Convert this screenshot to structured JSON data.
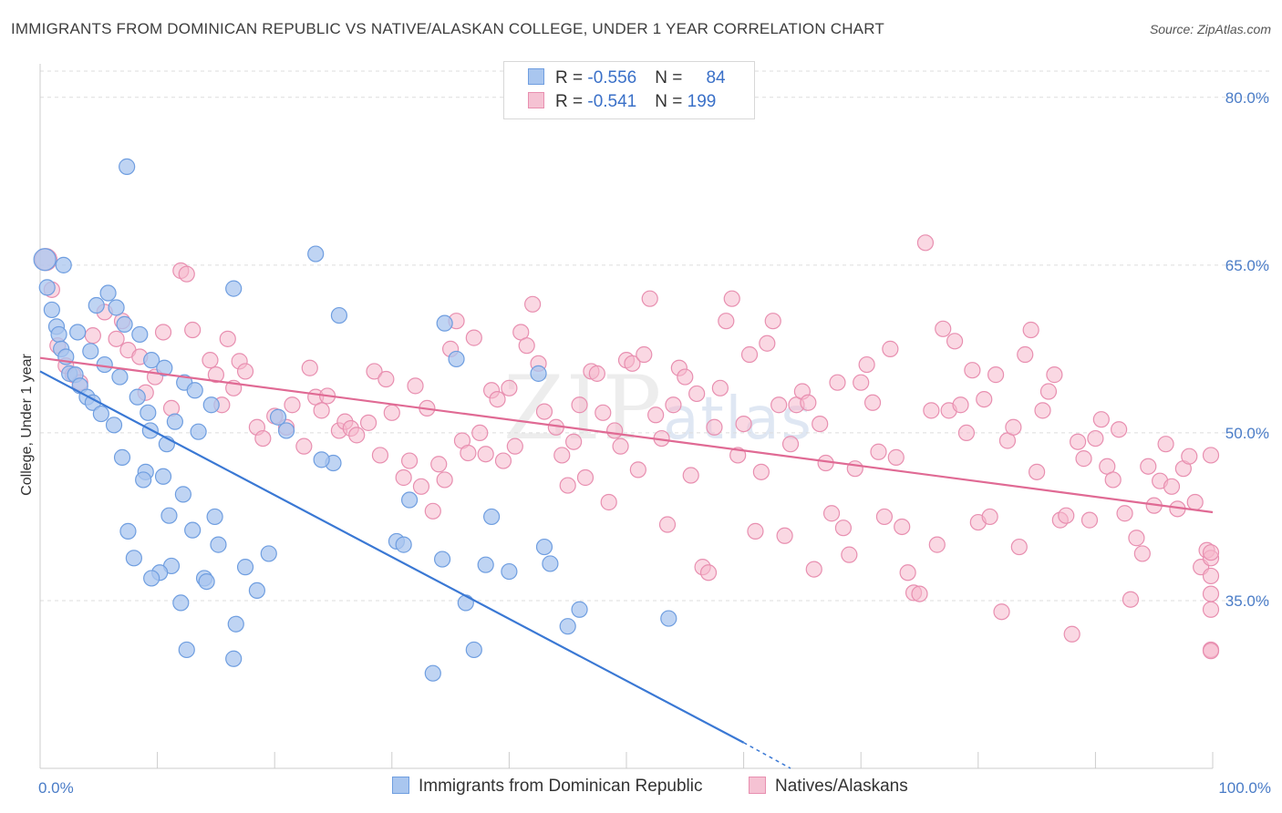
{
  "title": "IMMIGRANTS FROM DOMINICAN REPUBLIC VS NATIVE/ALASKAN COLLEGE, UNDER 1 YEAR CORRELATION CHART",
  "source": "Source: ZipAtlas.com",
  "watermark": {
    "zip": "ZIP",
    "atlas": "atlas"
  },
  "legend": {
    "blue": {
      "r_label": "R = ",
      "r_value": "-0.556",
      "n_label": "N = ",
      "n_value": "84"
    },
    "pink": {
      "r_label": "R = ",
      "r_value": "-0.541",
      "n_label": "N = ",
      "n_value": "199"
    }
  },
  "colors": {
    "blue": "#3a78d4",
    "blue_fill": "#a9c6ef",
    "pink": "#e06a94",
    "pink_fill": "#f5b8cc",
    "grid": "#dddddd"
  },
  "chart_data": {
    "type": "scatter",
    "xlabel": "",
    "ylabel": "College, Under 1 year",
    "xlim": [
      0,
      100
    ],
    "ylim": [
      20,
      83
    ],
    "x_tick_labels": [
      "0.0%",
      "100.0%"
    ],
    "y_ticks": [
      35,
      50,
      65,
      80
    ],
    "y_tick_labels": [
      "35.0%",
      "50.0%",
      "65.0%",
      "80.0%"
    ],
    "grid": true,
    "legend_position": "top-center",
    "series": [
      {
        "name": "Immigrants from Dominican Republic",
        "color": "#3a78d4",
        "trend": {
          "x": [
            0,
            60
          ],
          "y": [
            55.5,
            22.3
          ],
          "dashed_to": [
            64,
            20.0
          ]
        },
        "points": [
          [
            0.4,
            65.5
          ],
          [
            0.6,
            63
          ],
          [
            1.0,
            61
          ],
          [
            1.4,
            59.5
          ],
          [
            1.6,
            58.8
          ],
          [
            1.8,
            57.5
          ],
          [
            2.2,
            56.8
          ],
          [
            2.5,
            55.3
          ],
          [
            3.0,
            55.2
          ],
          [
            3.4,
            54.2
          ],
          [
            4.0,
            53.2
          ],
          [
            4.5,
            52.7
          ],
          [
            5.2,
            51.7
          ],
          [
            7.4,
            73.8
          ],
          [
            16.5,
            62.9
          ],
          [
            23.5,
            66.0
          ],
          [
            25.5,
            60.5
          ],
          [
            4.8,
            61.4
          ],
          [
            5.8,
            62.5
          ],
          [
            6.5,
            61.2
          ],
          [
            7.2,
            59.7
          ],
          [
            8.5,
            58.8
          ],
          [
            9.5,
            56.5
          ],
          [
            10.6,
            55.8
          ],
          [
            12.3,
            54.5
          ],
          [
            13.2,
            53.8
          ],
          [
            14.6,
            52.5
          ],
          [
            9.4,
            50.2
          ],
          [
            11.5,
            51.0
          ],
          [
            13.5,
            50.1
          ],
          [
            6.3,
            50.7
          ],
          [
            7.0,
            47.8
          ],
          [
            9.0,
            46.5
          ],
          [
            10.5,
            46.1
          ],
          [
            12.2,
            44.5
          ],
          [
            8.8,
            45.8
          ],
          [
            14.9,
            42.5
          ],
          [
            11.0,
            42.6
          ],
          [
            7.5,
            41.2
          ],
          [
            13.0,
            41.3
          ],
          [
            15.2,
            40.0
          ],
          [
            17.5,
            38.0
          ],
          [
            19.5,
            39.2
          ],
          [
            8.0,
            38.8
          ],
          [
            11.2,
            38.1
          ],
          [
            10.2,
            37.5
          ],
          [
            9.5,
            37.0
          ],
          [
            14.0,
            37.0
          ],
          [
            14.2,
            36.7
          ],
          [
            18.5,
            35.9
          ],
          [
            12.0,
            34.8
          ],
          [
            16.7,
            32.9
          ],
          [
            12.5,
            30.6
          ],
          [
            16.5,
            29.8
          ],
          [
            25.0,
            47.3
          ],
          [
            24.0,
            47.6
          ],
          [
            20.3,
            51.4
          ],
          [
            21.0,
            50.2
          ],
          [
            30.4,
            40.3
          ],
          [
            31.0,
            40.0
          ],
          [
            31.5,
            44.0
          ],
          [
            34.3,
            38.7
          ],
          [
            36.3,
            34.8
          ],
          [
            38.0,
            38.2
          ],
          [
            38.5,
            42.5
          ],
          [
            40.0,
            37.6
          ],
          [
            42.5,
            55.3
          ],
          [
            35.5,
            56.6
          ],
          [
            34.5,
            59.8
          ],
          [
            43.0,
            39.8
          ],
          [
            43.5,
            38.3
          ],
          [
            45.0,
            32.7
          ],
          [
            46.0,
            34.2
          ],
          [
            37.0,
            30.6
          ],
          [
            33.5,
            28.5
          ],
          [
            53.6,
            33.4
          ],
          [
            2.0,
            65.0
          ],
          [
            3.2,
            59.0
          ],
          [
            4.3,
            57.3
          ],
          [
            5.5,
            56.1
          ],
          [
            6.8,
            55.0
          ],
          [
            8.3,
            53.2
          ],
          [
            9.2,
            51.8
          ],
          [
            10.8,
            49.0
          ]
        ]
      },
      {
        "name": "Natives/Alaskans",
        "color": "#e06a94",
        "trend": {
          "x": [
            0,
            100
          ],
          "y": [
            56.7,
            42.9
          ]
        },
        "points": [
          [
            0.5,
            65.5
          ],
          [
            1.0,
            62.8
          ],
          [
            1.5,
            57.8
          ],
          [
            2.2,
            56.0
          ],
          [
            2.8,
            55.2
          ],
          [
            3.4,
            54.5
          ],
          [
            4.5,
            58.7
          ],
          [
            5.5,
            60.8
          ],
          [
            6.5,
            58.4
          ],
          [
            7.0,
            60.0
          ],
          [
            7.5,
            57.4
          ],
          [
            8.5,
            56.8
          ],
          [
            9.0,
            53.6
          ],
          [
            9.8,
            55.0
          ],
          [
            10.5,
            59.0
          ],
          [
            11.2,
            52.2
          ],
          [
            12.0,
            64.5
          ],
          [
            12.5,
            64.2
          ],
          [
            13.0,
            59.2
          ],
          [
            14.5,
            56.5
          ],
          [
            15.0,
            55.2
          ],
          [
            15.5,
            52.5
          ],
          [
            16.0,
            58.4
          ],
          [
            16.5,
            54.0
          ],
          [
            17.0,
            56.4
          ],
          [
            17.5,
            55.5
          ],
          [
            18.5,
            50.5
          ],
          [
            19.0,
            49.5
          ],
          [
            20.0,
            51.5
          ],
          [
            21.0,
            50.5
          ],
          [
            21.5,
            52.5
          ],
          [
            22.5,
            48.8
          ],
          [
            23.0,
            55.8
          ],
          [
            23.5,
            53.2
          ],
          [
            24.0,
            52.0
          ],
          [
            24.5,
            53.3
          ],
          [
            25.5,
            50.2
          ],
          [
            26.0,
            51.0
          ],
          [
            26.5,
            50.4
          ],
          [
            27.0,
            49.8
          ],
          [
            28.0,
            50.9
          ],
          [
            28.5,
            55.5
          ],
          [
            29.0,
            48.0
          ],
          [
            29.5,
            54.8
          ],
          [
            30.0,
            51.8
          ],
          [
            31.0,
            46.0
          ],
          [
            31.5,
            47.5
          ],
          [
            32.0,
            54.2
          ],
          [
            32.5,
            45.2
          ],
          [
            33.0,
            52.2
          ],
          [
            33.5,
            43.0
          ],
          [
            34.0,
            47.2
          ],
          [
            34.5,
            45.8
          ],
          [
            35.0,
            57.5
          ],
          [
            35.5,
            60.0
          ],
          [
            36.0,
            49.3
          ],
          [
            36.5,
            48.2
          ],
          [
            37.0,
            58.5
          ],
          [
            37.5,
            50.0
          ],
          [
            38.0,
            48.1
          ],
          [
            38.5,
            53.8
          ],
          [
            39.0,
            53.0
          ],
          [
            39.5,
            47.5
          ],
          [
            40.0,
            54.0
          ],
          [
            40.5,
            48.8
          ],
          [
            41.0,
            59.0
          ],
          [
            41.5,
            57.8
          ],
          [
            42.0,
            61.5
          ],
          [
            42.5,
            56.2
          ],
          [
            43.0,
            51.9
          ],
          [
            44.0,
            50.5
          ],
          [
            44.5,
            48.0
          ],
          [
            45.0,
            45.3
          ],
          [
            45.5,
            49.2
          ],
          [
            46.0,
            52.5
          ],
          [
            46.5,
            46.0
          ],
          [
            47.0,
            55.5
          ],
          [
            47.5,
            55.3
          ],
          [
            48.0,
            51.8
          ],
          [
            48.5,
            43.8
          ],
          [
            49.0,
            50.2
          ],
          [
            49.5,
            48.8
          ],
          [
            50.0,
            56.5
          ],
          [
            50.5,
            56.2
          ],
          [
            51.0,
            46.7
          ],
          [
            51.5,
            57.0
          ],
          [
            52.0,
            62.0
          ],
          [
            52.5,
            51.6
          ],
          [
            53.0,
            49.5
          ],
          [
            53.5,
            41.8
          ],
          [
            54.0,
            52.5
          ],
          [
            54.5,
            55.8
          ],
          [
            55.0,
            55.0
          ],
          [
            55.5,
            46.2
          ],
          [
            56.0,
            53.5
          ],
          [
            56.5,
            38.0
          ],
          [
            57.0,
            37.5
          ],
          [
            57.5,
            50.5
          ],
          [
            58.0,
            54.0
          ],
          [
            58.5,
            60.0
          ],
          [
            59.0,
            62.0
          ],
          [
            59.5,
            48.0
          ],
          [
            60.0,
            50.8
          ],
          [
            60.5,
            57.0
          ],
          [
            61.0,
            41.2
          ],
          [
            61.5,
            46.5
          ],
          [
            62.0,
            58.0
          ],
          [
            62.5,
            60.0
          ],
          [
            63.0,
            52.5
          ],
          [
            63.5,
            40.8
          ],
          [
            64.0,
            49.0
          ],
          [
            64.5,
            52.5
          ],
          [
            65.0,
            53.7
          ],
          [
            65.5,
            52.7
          ],
          [
            66.0,
            37.8
          ],
          [
            66.5,
            50.8
          ],
          [
            67.0,
            47.3
          ],
          [
            67.5,
            42.8
          ],
          [
            68.0,
            54.5
          ],
          [
            68.5,
            41.5
          ],
          [
            69.0,
            39.1
          ],
          [
            69.5,
            46.8
          ],
          [
            70.0,
            54.5
          ],
          [
            70.5,
            56.1
          ],
          [
            71.0,
            52.7
          ],
          [
            71.5,
            48.3
          ],
          [
            72.0,
            42.5
          ],
          [
            72.5,
            57.5
          ],
          [
            73.0,
            47.8
          ],
          [
            73.5,
            41.6
          ],
          [
            74.0,
            37.5
          ],
          [
            74.5,
            35.7
          ],
          [
            75.0,
            35.6
          ],
          [
            75.5,
            67.0
          ],
          [
            76.0,
            52.0
          ],
          [
            76.5,
            40.0
          ],
          [
            77.0,
            59.3
          ],
          [
            77.5,
            52.0
          ],
          [
            78.0,
            58.2
          ],
          [
            78.5,
            52.5
          ],
          [
            79.0,
            50.0
          ],
          [
            79.5,
            55.6
          ],
          [
            80.0,
            42.0
          ],
          [
            80.5,
            53.0
          ],
          [
            81.0,
            42.5
          ],
          [
            81.5,
            55.2
          ],
          [
            82.0,
            34.0
          ],
          [
            82.5,
            49.3
          ],
          [
            83.0,
            50.5
          ],
          [
            83.5,
            39.8
          ],
          [
            84.0,
            57.0
          ],
          [
            84.5,
            59.2
          ],
          [
            85.0,
            46.5
          ],
          [
            85.5,
            52.0
          ],
          [
            86.0,
            53.7
          ],
          [
            86.5,
            55.2
          ],
          [
            87.0,
            42.2
          ],
          [
            87.5,
            42.6
          ],
          [
            88.0,
            32.0
          ],
          [
            88.5,
            49.2
          ],
          [
            89.0,
            47.7
          ],
          [
            89.5,
            42.2
          ],
          [
            90.0,
            49.5
          ],
          [
            90.5,
            51.2
          ],
          [
            91.0,
            47.0
          ],
          [
            91.5,
            45.8
          ],
          [
            92.0,
            50.3
          ],
          [
            92.5,
            42.8
          ],
          [
            93.0,
            35.1
          ],
          [
            93.5,
            40.6
          ],
          [
            94.0,
            39.2
          ],
          [
            94.5,
            47.0
          ],
          [
            95.0,
            43.5
          ],
          [
            95.5,
            45.7
          ],
          [
            96.0,
            49.0
          ],
          [
            96.5,
            45.2
          ],
          [
            97.0,
            43.2
          ],
          [
            97.5,
            46.8
          ],
          [
            98.0,
            47.9
          ],
          [
            98.5,
            43.8
          ],
          [
            99.0,
            38.0
          ],
          [
            99.5,
            39.5
          ],
          [
            100.0,
            38.8
          ],
          [
            100.5,
            37.2
          ],
          [
            101.0,
            30.6
          ],
          [
            101.5,
            30.5
          ],
          [
            102.0,
            34.2
          ],
          [
            102.5,
            35.6
          ],
          [
            103.0,
            39.3
          ],
          [
            103.5,
            48.0
          ]
        ]
      }
    ]
  }
}
